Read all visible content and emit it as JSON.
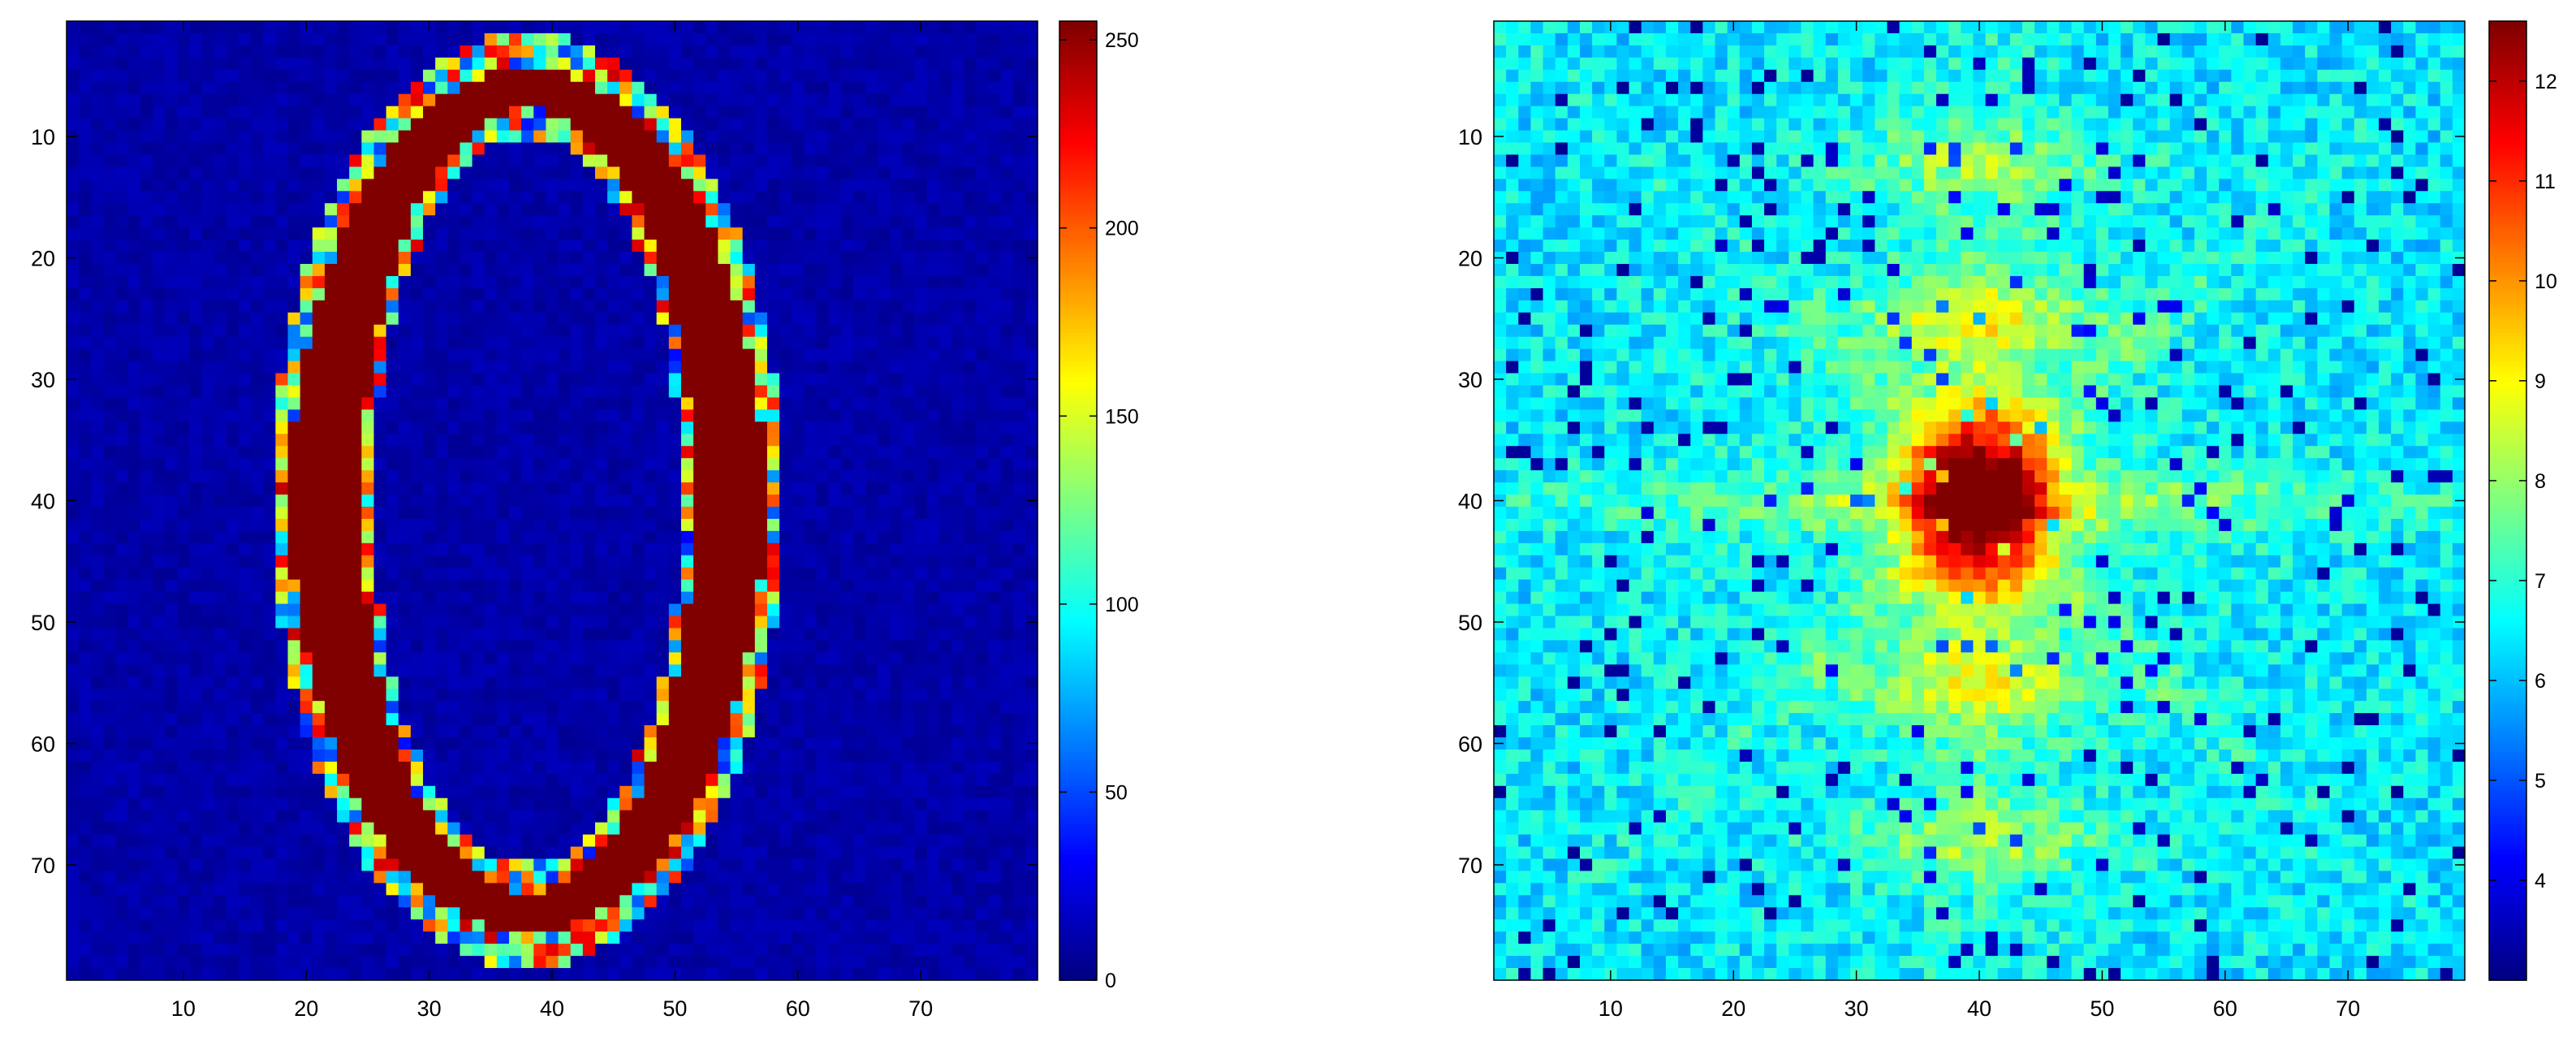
{
  "chart_data": [
    {
      "type": "heatmap",
      "title": "",
      "xlabel": "",
      "ylabel": "",
      "grid": false,
      "colormap": "jet",
      "x_range": [
        0.5,
        79.5
      ],
      "y_range": [
        0.5,
        79.5
      ],
      "y_direction": "reversed",
      "x_ticks": [
        10,
        20,
        30,
        40,
        50,
        60,
        70
      ],
      "y_ticks": [
        10,
        20,
        30,
        40,
        50,
        60,
        70
      ],
      "colorbar": {
        "range": [
          0,
          255
        ],
        "ticks": [
          0,
          50,
          100,
          150,
          200,
          250
        ]
      },
      "pattern": "digit-0 ring, inner background ~10, ring ~255",
      "ring": {
        "center": [
          38,
          40
        ],
        "outer_radii": [
          20,
          37
        ],
        "inner_radii": [
          13,
          31
        ]
      },
      "background_value": 10,
      "ring_value": 255
    },
    {
      "type": "heatmap",
      "title": "",
      "xlabel": "",
      "ylabel": "",
      "grid": false,
      "colormap": "jet",
      "x_range": [
        0.5,
        79.5
      ],
      "y_range": [
        0.5,
        79.5
      ],
      "y_direction": "reversed",
      "x_ticks": [
        10,
        20,
        30,
        40,
        50,
        60,
        70
      ],
      "y_ticks": [
        10,
        20,
        30,
        40,
        50,
        60,
        70
      ],
      "colorbar": {
        "range": [
          3,
          12.6
        ],
        "ticks": [
          4,
          5,
          6,
          7,
          8,
          9,
          10,
          11,
          12
        ]
      },
      "pattern": "log-magnitude spectrum, peak ~12.6 at center (40,40), falloff to ~6, minima ~3",
      "center": [
        40,
        40
      ],
      "peak_value": 12.6,
      "base_value": 6.3,
      "min_value": 3
    }
  ]
}
